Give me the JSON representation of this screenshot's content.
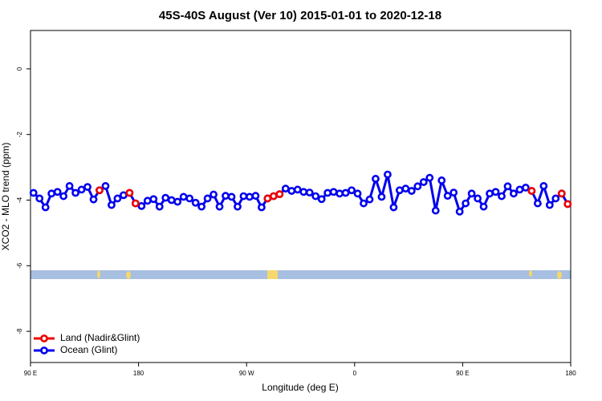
{
  "chart_data": {
    "type": "line",
    "title": "45S-40S August (Ver 10)   2015-01-01 to 2020-12-18",
    "xlabel": "Longitude (deg E)",
    "ylabel": "XCO2 - MLO trend (ppm)",
    "xlim": [
      90,
      540
    ],
    "ylim": [
      -8.95,
      1.17
    ],
    "xticks": [
      {
        "value": 90,
        "label": "90 E"
      },
      180,
      {
        "value": 270,
        "label": "90 W"
      },
      {
        "value": 360,
        "label": "0"
      },
      {
        "value": 450,
        "label": "90 E"
      },
      {
        "value": 540,
        "label": "180"
      }
    ],
    "yticks": [
      0,
      -2,
      -4,
      -6,
      -8
    ],
    "legend": "bottomleft",
    "x": [
      92.5,
      97.5,
      102.5,
      107.5,
      112.5,
      117.5,
      122.5,
      127.5,
      132.5,
      137.5,
      142.5,
      147.5,
      152.5,
      157.5,
      162.5,
      167.5,
      172.5,
      177.5,
      182.5,
      187.5,
      192.5,
      197.5,
      202.5,
      207.5,
      212.5,
      217.5,
      222.5,
      227.5,
      232.5,
      237.5,
      242.5,
      247.5,
      252.5,
      257.5,
      262.5,
      267.5,
      272.5,
      277.5,
      282.5,
      287.5,
      292.5,
      297.5,
      302.5,
      307.5,
      312.5,
      317.5,
      322.5,
      327.5,
      332.5,
      337.5,
      342.5,
      347.5,
      352.5,
      357.5,
      362.5,
      367.5,
      372.5,
      377.5,
      382.5,
      387.5,
      392.5,
      397.5,
      402.5,
      407.5,
      412.5,
      417.5,
      422.5,
      427.5,
      432.5,
      437.5,
      442.5,
      447.5,
      452.5,
      457.5,
      462.5,
      467.5,
      472.5,
      477.5,
      482.5,
      487.5,
      492.5,
      497.5,
      502.5,
      507.5,
      512.5,
      517.5,
      522.5,
      527.5,
      532.5,
      537.5
    ],
    "series": [
      {
        "name": "Ocean (Glint)",
        "color": "#0000ee",
        "values": [
          -3.78,
          -3.95,
          -4.22,
          -3.8,
          -3.75,
          -3.88,
          -3.57,
          -3.78,
          -3.68,
          -3.6,
          -3.98,
          -3.7,
          -3.57,
          -4.15,
          -3.95,
          -3.85,
          -3.78,
          -4.1,
          -4.18,
          -4.02,
          -3.97,
          -4.2,
          -3.93,
          -4.0,
          -4.05,
          -3.9,
          -3.95,
          -4.08,
          -4.2,
          -3.95,
          -3.83,
          -4.2,
          -3.87,
          -3.9,
          -4.2,
          -3.88,
          -3.9,
          -3.87,
          -4.22,
          -3.95,
          -3.88,
          -3.82,
          -3.65,
          -3.72,
          -3.68,
          -3.75,
          -3.77,
          -3.88,
          -3.97,
          -3.78,
          -3.75,
          -3.8,
          -3.78,
          -3.7,
          -3.8,
          -4.1,
          -3.98,
          -3.35,
          -3.9,
          -3.22,
          -4.22,
          -3.7,
          -3.65,
          -3.72,
          -3.58,
          -3.45,
          -3.32,
          -4.32,
          -3.4,
          -3.87,
          -3.77,
          -4.35,
          -4.1,
          -3.8,
          -3.95,
          -4.2,
          -3.8,
          -3.75,
          -3.88,
          -3.58,
          -3.8,
          -3.68,
          -3.62,
          -3.72,
          -4.1,
          -3.57,
          -4.15,
          -3.95,
          -3.8,
          -4.12
        ]
      },
      {
        "name": "Land (Nadir&Glint)",
        "color": "#ee0000",
        "values": [
          null,
          null,
          null,
          null,
          null,
          null,
          null,
          null,
          null,
          null,
          null,
          -3.7,
          null,
          null,
          null,
          null,
          -3.78,
          -4.1,
          null,
          null,
          null,
          null,
          null,
          null,
          null,
          null,
          null,
          null,
          null,
          null,
          null,
          null,
          null,
          null,
          null,
          null,
          null,
          null,
          null,
          -3.95,
          -3.88,
          -3.82,
          null,
          null,
          null,
          null,
          null,
          null,
          null,
          null,
          null,
          null,
          null,
          null,
          null,
          null,
          null,
          null,
          null,
          null,
          null,
          null,
          null,
          null,
          null,
          null,
          null,
          null,
          null,
          null,
          null,
          null,
          null,
          null,
          null,
          null,
          null,
          null,
          null,
          null,
          null,
          null,
          null,
          -3.72,
          null,
          null,
          null,
          null,
          -3.8,
          -4.12
        ]
      }
    ]
  }
}
